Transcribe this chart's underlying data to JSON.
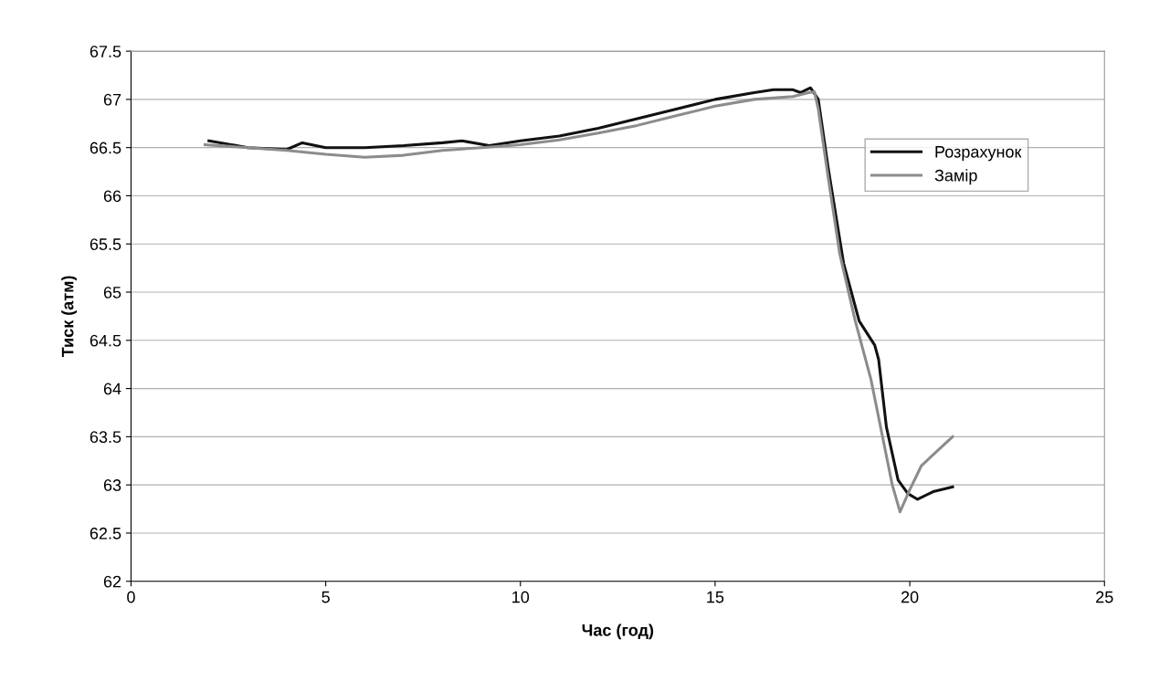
{
  "chart_data": {
    "type": "line",
    "xlabel": "Час (год)",
    "ylabel": "Тиск (атм)",
    "xlim": [
      0,
      25
    ],
    "xticks": [
      0,
      5,
      10,
      15,
      20,
      25
    ],
    "ylim": [
      62,
      67.5
    ],
    "yticks": [
      62,
      62.5,
      63,
      63.5,
      64,
      64.5,
      65,
      65.5,
      66,
      66.5,
      67,
      67.5
    ],
    "grid": "y",
    "legend": "top right",
    "marker": "none",
    "line_style": "solid",
    "series": [
      {
        "name": "Розрахунок",
        "color": "#111111",
        "x": [
          2,
          3,
          4,
          4.4,
          5,
          6,
          7,
          8,
          8.5,
          9.2,
          10,
          11,
          12,
          13,
          14,
          15,
          16,
          16.5,
          17,
          17.2,
          17.45,
          17.65,
          17.9,
          18.3,
          18.7,
          19.1,
          19.2,
          19.4,
          19.7,
          19.95,
          20.2,
          20.6,
          21.1
        ],
        "values": [
          66.57,
          66.5,
          66.48,
          66.55,
          66.5,
          66.5,
          66.52,
          66.55,
          66.57,
          66.52,
          66.57,
          66.62,
          66.7,
          66.8,
          66.9,
          67.0,
          67.07,
          67.1,
          67.1,
          67.07,
          67.12,
          67.0,
          66.3,
          65.3,
          64.7,
          64.45,
          64.3,
          63.6,
          63.05,
          62.91,
          62.85,
          62.93,
          62.98
        ]
      },
      {
        "name": "Замір",
        "color": "#8c8c8c",
        "x": [
          1.9,
          3,
          4,
          5,
          6,
          7,
          8,
          9,
          10,
          11,
          12,
          13,
          14,
          15,
          16,
          17,
          17.4,
          17.55,
          17.65,
          17.9,
          18.2,
          18.6,
          19.0,
          19.3,
          19.55,
          19.75,
          20.0,
          20.3,
          20.7,
          21.1
        ],
        "values": [
          66.53,
          66.5,
          66.47,
          66.43,
          66.4,
          66.42,
          66.47,
          66.5,
          66.53,
          66.58,
          66.65,
          66.73,
          66.83,
          66.93,
          67.0,
          67.03,
          67.07,
          67.08,
          66.9,
          66.2,
          65.4,
          64.7,
          64.1,
          63.5,
          63.0,
          62.72,
          62.95,
          63.2,
          63.35,
          63.5
        ]
      }
    ]
  }
}
